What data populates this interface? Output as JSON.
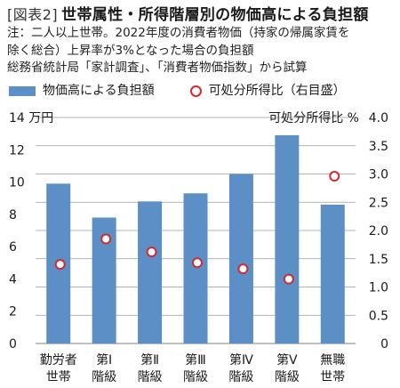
{
  "header": {
    "fig_label": "[図表2]",
    "title": "世帯属性・所得階層別の物価高による負担額",
    "notes": [
      "注：二人以上世帯。2022年度の消費者物価（持家の帰属家賃を",
      "除く総合）上昇率が3%となった場合の負担額",
      "総務省統計局「家計調査」、「消費者物価指数」から試算"
    ]
  },
  "legend": {
    "bar_label": "物価高による負担額",
    "circle_label": "可処分所得比（右目盛）"
  },
  "colors": {
    "bar": "#5b8fc6",
    "circle_stroke": "#d22a32",
    "grid": "#9a9a9a"
  },
  "chart_data": {
    "type": "bar",
    "categories": [
      [
        "勤労者",
        "世帯"
      ],
      [
        "第Ⅰ",
        "階級"
      ],
      [
        "第Ⅱ",
        "階級"
      ],
      [
        "第Ⅲ",
        "階級"
      ],
      [
        "第Ⅳ",
        "階級"
      ],
      [
        "第Ⅴ",
        "階級"
      ],
      [
        "無職",
        "世帯"
      ]
    ],
    "series": [
      {
        "name": "物価高による負担額",
        "axis": "left",
        "values": [
          9.9,
          7.8,
          8.8,
          9.3,
          10.5,
          12.9,
          8.6
        ]
      },
      {
        "name": "可処分所得比（右目盛）",
        "axis": "right",
        "marker": "circle",
        "values": [
          1.4,
          1.85,
          1.62,
          1.43,
          1.32,
          1.14,
          2.96
        ]
      }
    ],
    "left_axis": {
      "label": "14 万円",
      "ticks": [
        "0",
        "2",
        "4",
        "6",
        "8",
        "10",
        "12"
      ],
      "ylim": [
        0,
        14
      ]
    },
    "right_axis": {
      "label": "可処分所得比 %",
      "ticks": [
        "0",
        "0.5",
        "1.0",
        "1.5",
        "2.0",
        "2.5",
        "3.0",
        "3.5",
        "4.0"
      ],
      "ylim": [
        0,
        4
      ]
    },
    "grid": true
  }
}
